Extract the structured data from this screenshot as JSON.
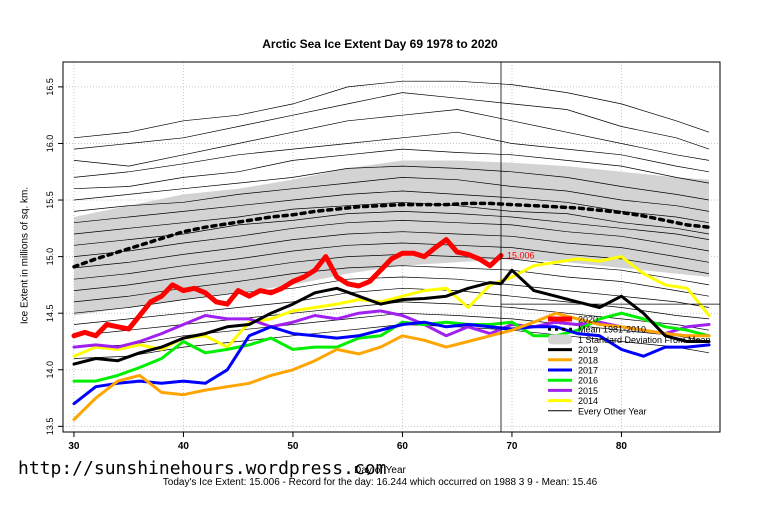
{
  "chart_data": {
    "type": "line",
    "title": "Arctic Sea Ice Extent Day 69 1978 to 2020",
    "xlabel": "Day of Year",
    "ylabel": "Ice Extent in millions of sq. km.",
    "xlim": [
      29,
      89
    ],
    "ylim": [
      13.45,
      16.72
    ],
    "x_ticks": [
      30,
      40,
      50,
      60,
      70,
      80
    ],
    "y_ticks": [
      13.5,
      14.0,
      14.5,
      15.0,
      15.5,
      16.0,
      16.5
    ],
    "grid": true,
    "legend_position": "bottom-right",
    "current_day_line": 69,
    "today_label": "15.006",
    "mean": {
      "name": "Mean 1981-2010",
      "x": [
        30,
        32,
        34,
        36,
        38,
        40,
        42,
        44,
        46,
        48,
        50,
        52,
        54,
        56,
        58,
        60,
        62,
        64,
        66,
        68,
        70,
        72,
        74,
        76,
        78,
        80,
        82,
        84,
        86,
        88
      ],
      "y": [
        14.91,
        14.98,
        15.04,
        15.1,
        15.16,
        15.22,
        15.26,
        15.29,
        15.32,
        15.35,
        15.37,
        15.4,
        15.42,
        15.44,
        15.45,
        15.46,
        15.46,
        15.46,
        15.47,
        15.47,
        15.46,
        15.45,
        15.44,
        15.43,
        15.41,
        15.39,
        15.36,
        15.32,
        15.28,
        15.26
      ]
    },
    "std_band": {
      "name": "1 Standard Deviation From Mean",
      "x": [
        30,
        35,
        40,
        45,
        50,
        55,
        60,
        65,
        70,
        75,
        80,
        85,
        88
      ],
      "upper": [
        15.35,
        15.45,
        15.55,
        15.6,
        15.68,
        15.78,
        15.85,
        15.85,
        15.83,
        15.8,
        15.75,
        15.7,
        15.68
      ],
      "lower": [
        14.48,
        14.55,
        14.62,
        14.68,
        14.75,
        14.85,
        14.92,
        14.95,
        14.98,
        14.95,
        14.9,
        14.85,
        14.82
      ]
    },
    "series": [
      {
        "name": "2020",
        "color": "#ff0000",
        "width": 5,
        "x": [
          30,
          31,
          32,
          33,
          34,
          35,
          36,
          37,
          38,
          39,
          40,
          41,
          42,
          43,
          44,
          45,
          46,
          47,
          48,
          49,
          50,
          51,
          52,
          53,
          54,
          55,
          56,
          57,
          58,
          59,
          60,
          61,
          62,
          63,
          64,
          65,
          66,
          67,
          68,
          69
        ],
        "y": [
          14.3,
          14.33,
          14.3,
          14.4,
          14.38,
          14.36,
          14.48,
          14.6,
          14.65,
          14.75,
          14.7,
          14.72,
          14.68,
          14.6,
          14.58,
          14.7,
          14.65,
          14.7,
          14.68,
          14.72,
          14.78,
          14.82,
          14.88,
          15.0,
          14.82,
          14.76,
          14.74,
          14.78,
          14.88,
          14.98,
          15.03,
          15.03,
          15.0,
          15.08,
          15.15,
          15.04,
          15.02,
          14.98,
          14.92,
          15.01
        ]
      },
      {
        "name": "2019",
        "color": "#000000",
        "width": 3,
        "x": [
          30,
          32,
          34,
          36,
          38,
          40,
          42,
          44,
          46,
          48,
          50,
          52,
          54,
          56,
          58,
          60,
          62,
          64,
          66,
          68,
          69,
          70,
          72,
          74,
          76,
          78,
          80,
          82,
          84,
          86,
          88
        ],
        "y": [
          14.05,
          14.1,
          14.08,
          14.15,
          14.2,
          14.28,
          14.32,
          14.38,
          14.4,
          14.5,
          14.58,
          14.68,
          14.72,
          14.65,
          14.58,
          14.62,
          14.63,
          14.65,
          14.72,
          14.77,
          14.76,
          14.88,
          14.7,
          14.65,
          14.6,
          14.55,
          14.65,
          14.5,
          14.3,
          14.25,
          14.25
        ]
      },
      {
        "name": "2018",
        "color": "#ffa500",
        "width": 3,
        "x": [
          30,
          32,
          34,
          36,
          38,
          40,
          42,
          44,
          46,
          48,
          50,
          52,
          54,
          56,
          58,
          60,
          62,
          64,
          66,
          68,
          70,
          72,
          74,
          76,
          78,
          80,
          82,
          84,
          86,
          88
        ],
        "y": [
          13.56,
          13.75,
          13.9,
          13.95,
          13.8,
          13.78,
          13.82,
          13.85,
          13.88,
          13.95,
          14.0,
          14.08,
          14.18,
          14.14,
          14.2,
          14.3,
          14.26,
          14.2,
          14.25,
          14.3,
          14.35,
          14.42,
          14.5,
          14.45,
          14.4,
          14.38,
          14.35,
          14.32,
          14.3,
          14.3
        ]
      },
      {
        "name": "2017",
        "color": "#0000ff",
        "width": 3,
        "x": [
          30,
          32,
          34,
          36,
          38,
          40,
          42,
          44,
          46,
          48,
          50,
          52,
          54,
          56,
          58,
          60,
          62,
          64,
          66,
          68,
          70,
          72,
          74,
          76,
          78,
          80,
          82,
          84,
          86,
          88
        ],
        "y": [
          13.7,
          13.85,
          13.88,
          13.9,
          13.88,
          13.9,
          13.88,
          14.0,
          14.3,
          14.38,
          14.32,
          14.3,
          14.28,
          14.3,
          14.35,
          14.4,
          14.42,
          14.38,
          14.4,
          14.38,
          14.36,
          14.38,
          14.38,
          14.32,
          14.3,
          14.18,
          14.12,
          14.2,
          14.2,
          14.22
        ]
      },
      {
        "name": "2016",
        "color": "#00ee00",
        "width": 3,
        "x": [
          30,
          32,
          34,
          36,
          38,
          40,
          42,
          44,
          46,
          48,
          50,
          52,
          54,
          56,
          58,
          60,
          62,
          64,
          66,
          68,
          70,
          72,
          74,
          76,
          78,
          80,
          82,
          84,
          86,
          88
        ],
        "y": [
          13.9,
          13.9,
          13.95,
          14.02,
          14.1,
          14.25,
          14.15,
          14.18,
          14.22,
          14.28,
          14.18,
          14.2,
          14.2,
          14.28,
          14.3,
          14.42,
          14.4,
          14.42,
          14.4,
          14.4,
          14.42,
          14.3,
          14.3,
          14.35,
          14.45,
          14.5,
          14.45,
          14.38,
          14.35,
          14.3
        ]
      },
      {
        "name": "2015",
        "color": "#a020f0",
        "width": 3,
        "x": [
          30,
          32,
          34,
          36,
          38,
          40,
          42,
          44,
          46,
          48,
          50,
          52,
          54,
          56,
          58,
          60,
          62,
          64,
          66,
          68,
          70,
          72,
          74,
          76,
          78,
          80,
          82,
          84,
          86,
          88
        ],
        "y": [
          14.2,
          14.22,
          14.2,
          14.25,
          14.32,
          14.4,
          14.48,
          14.45,
          14.45,
          14.38,
          14.42,
          14.48,
          14.45,
          14.5,
          14.52,
          14.48,
          14.4,
          14.3,
          14.38,
          14.32,
          14.4,
          14.38,
          14.42,
          14.4,
          14.42,
          14.38,
          14.35,
          14.32,
          14.38,
          14.4
        ]
      },
      {
        "name": "2014",
        "color": "#ffff00",
        "width": 3,
        "x": [
          30,
          32,
          34,
          36,
          38,
          40,
          42,
          44,
          46,
          48,
          50,
          52,
          54,
          56,
          58,
          60,
          62,
          64,
          66,
          68,
          70,
          72,
          74,
          76,
          78,
          80,
          82,
          84,
          86,
          88
        ],
        "y": [
          14.12,
          14.2,
          14.18,
          14.22,
          14.18,
          14.28,
          14.3,
          14.2,
          14.42,
          14.45,
          14.52,
          14.55,
          14.58,
          14.62,
          14.6,
          14.65,
          14.7,
          14.72,
          14.55,
          14.75,
          14.82,
          14.92,
          14.95,
          14.98,
          14.96,
          15.0,
          14.85,
          14.75,
          14.72,
          14.48
        ]
      }
    ],
    "other_years": {
      "name": "Every Other Year",
      "x": [
        30,
        35,
        40,
        45,
        50,
        55,
        60,
        65,
        70,
        75,
        80,
        85,
        88
      ],
      "series": [
        [
          16.05,
          16.1,
          16.2,
          16.25,
          16.35,
          16.5,
          16.55,
          16.55,
          16.52,
          16.45,
          16.35,
          16.2,
          16.1
        ],
        [
          15.95,
          16.0,
          16.05,
          16.15,
          16.25,
          16.35,
          16.45,
          16.4,
          16.35,
          16.3,
          16.15,
          16.05,
          15.95
        ],
        [
          15.85,
          15.8,
          15.9,
          16.0,
          16.1,
          16.2,
          16.25,
          16.3,
          16.2,
          16.1,
          16.0,
          15.9,
          15.85
        ],
        [
          15.7,
          15.75,
          15.82,
          15.9,
          15.95,
          16.0,
          16.05,
          16.1,
          16.0,
          15.95,
          15.9,
          15.8,
          15.75
        ],
        [
          15.6,
          15.62,
          15.7,
          15.75,
          15.85,
          15.9,
          15.95,
          15.92,
          15.9,
          15.85,
          15.8,
          15.7,
          15.65
        ],
        [
          15.5,
          15.55,
          15.6,
          15.65,
          15.7,
          15.78,
          15.8,
          15.78,
          15.75,
          15.7,
          15.62,
          15.55,
          15.5
        ],
        [
          15.4,
          15.45,
          15.48,
          15.55,
          15.6,
          15.65,
          15.7,
          15.68,
          15.62,
          15.58,
          15.5,
          15.45,
          15.4
        ],
        [
          15.3,
          15.35,
          15.4,
          15.45,
          15.5,
          15.55,
          15.58,
          15.55,
          15.52,
          15.48,
          15.4,
          15.35,
          15.3
        ],
        [
          15.2,
          15.25,
          15.3,
          15.35,
          15.42,
          15.45,
          15.48,
          15.45,
          15.4,
          15.38,
          15.3,
          15.25,
          15.2
        ],
        [
          15.1,
          15.15,
          15.2,
          15.28,
          15.32,
          15.38,
          15.4,
          15.38,
          15.35,
          15.3,
          15.25,
          15.2,
          15.15
        ],
        [
          15.0,
          15.05,
          15.12,
          15.18,
          15.25,
          15.3,
          15.32,
          15.3,
          15.28,
          15.22,
          15.18,
          15.1,
          15.05
        ],
        [
          14.9,
          14.95,
          15.02,
          15.08,
          15.15,
          15.2,
          15.22,
          15.2,
          15.18,
          15.12,
          15.08,
          15.0,
          14.95
        ],
        [
          14.8,
          14.85,
          14.92,
          14.98,
          15.05,
          15.1,
          15.12,
          15.1,
          15.08,
          15.02,
          14.98,
          14.9,
          14.85
        ],
        [
          14.7,
          14.75,
          14.82,
          14.88,
          14.95,
          15.0,
          15.02,
          15.0,
          14.98,
          14.92,
          14.88,
          14.8,
          14.75
        ],
        [
          14.6,
          14.65,
          14.72,
          14.78,
          14.85,
          14.9,
          14.92,
          14.9,
          14.88,
          14.82,
          14.78,
          14.7,
          14.65
        ],
        [
          14.5,
          14.55,
          14.62,
          14.68,
          14.72,
          14.8,
          14.82,
          14.8,
          14.75,
          14.7,
          14.65,
          14.6,
          14.55
        ],
        [
          14.4,
          14.45,
          14.5,
          14.55,
          14.6,
          14.68,
          14.72,
          14.7,
          14.65,
          14.6,
          14.55,
          14.48,
          14.45
        ],
        [
          14.3,
          14.35,
          14.4,
          14.45,
          14.5,
          14.55,
          14.6,
          14.58,
          14.55,
          14.5,
          14.45,
          14.4,
          14.35
        ],
        [
          14.2,
          14.22,
          14.3,
          14.35,
          14.4,
          14.45,
          14.5,
          14.48,
          14.45,
          14.4,
          14.35,
          14.3,
          14.25
        ],
        [
          14.1,
          14.12,
          14.2,
          14.25,
          14.3,
          14.35,
          14.4,
          14.38,
          14.35,
          14.3,
          14.25,
          14.2,
          14.15
        ]
      ]
    },
    "legend": [
      {
        "label": "2020",
        "kind": "line",
        "color": "#ff0000",
        "width": 5
      },
      {
        "label": "Mean 1981-2010",
        "kind": "dash",
        "color": "#000000",
        "width": 3
      },
      {
        "label": "1 Standard Deviation From Mean",
        "kind": "band",
        "color": "#d3d3d3"
      },
      {
        "label": "2019",
        "kind": "line",
        "color": "#000000",
        "width": 3
      },
      {
        "label": "2018",
        "kind": "line",
        "color": "#ffa500",
        "width": 3
      },
      {
        "label": "2017",
        "kind": "line",
        "color": "#0000ff",
        "width": 3
      },
      {
        "label": "2016",
        "kind": "line",
        "color": "#00ee00",
        "width": 3
      },
      {
        "label": "2015",
        "kind": "line",
        "color": "#a020f0",
        "width": 3
      },
      {
        "label": "2014",
        "kind": "line",
        "color": "#ffff00",
        "width": 3
      },
      {
        "label": "Every Other Year",
        "kind": "line",
        "color": "#000000",
        "width": 1
      }
    ]
  },
  "watermark": "http://sunshinehours.wordpress.com",
  "footer": "Today's Ice Extent: 15.006  - Record for the day: 16.244 which occurred on 1988 3 9  - Mean: 15.46"
}
